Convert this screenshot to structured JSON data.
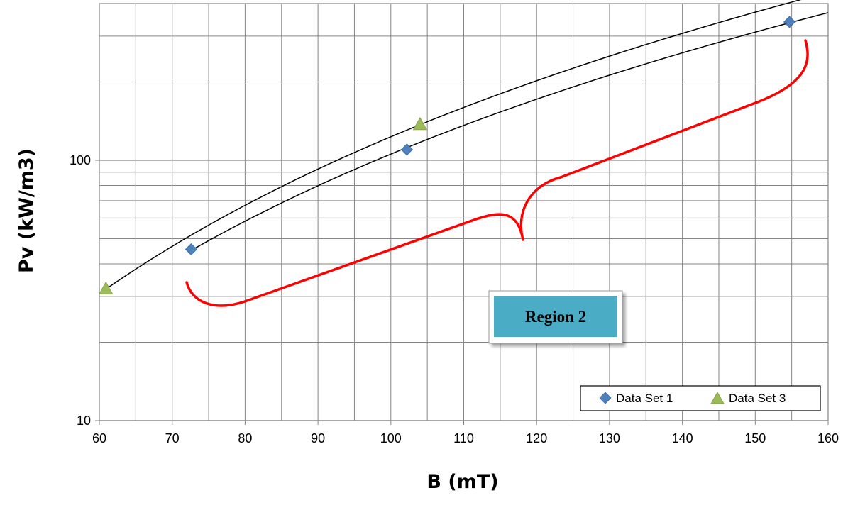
{
  "chart_data": {
    "type": "scatter",
    "title": "",
    "xlabel": "B (mT)",
    "ylabel": "Pv (kW/m3)",
    "xlim": [
      60,
      160
    ],
    "ylim": [
      10,
      400
    ],
    "yscale": "log",
    "x_ticks": [
      60,
      70,
      80,
      90,
      100,
      110,
      120,
      130,
      140,
      150,
      160
    ],
    "y_tick_labels": [
      10,
      100
    ],
    "grid": true,
    "legend_position": "bottom-right",
    "series": [
      {
        "name": "Data Set 1",
        "marker": "diamond",
        "color": "#4F81BD",
        "x": [
          72.6,
          102.2,
          154.7
        ],
        "y": [
          45.5,
          110,
          340
        ],
        "trendline": {
          "type": "power",
          "color": "#000000",
          "x_range": [
            72.6,
            160
          ]
        }
      },
      {
        "name": "Data Set 3",
        "marker": "triangle",
        "color": "#9BBB59",
        "x": [
          60.9,
          104.0
        ],
        "y": [
          32,
          137
        ],
        "trendline": {
          "type": "power",
          "color": "#000000",
          "x_range": [
            60.9,
            160
          ]
        }
      }
    ],
    "annotations": [
      {
        "type": "text-box",
        "text": "Region 2",
        "fill": "#4BACC6"
      },
      {
        "type": "curly-brace",
        "color": "#FF0000"
      }
    ]
  }
}
